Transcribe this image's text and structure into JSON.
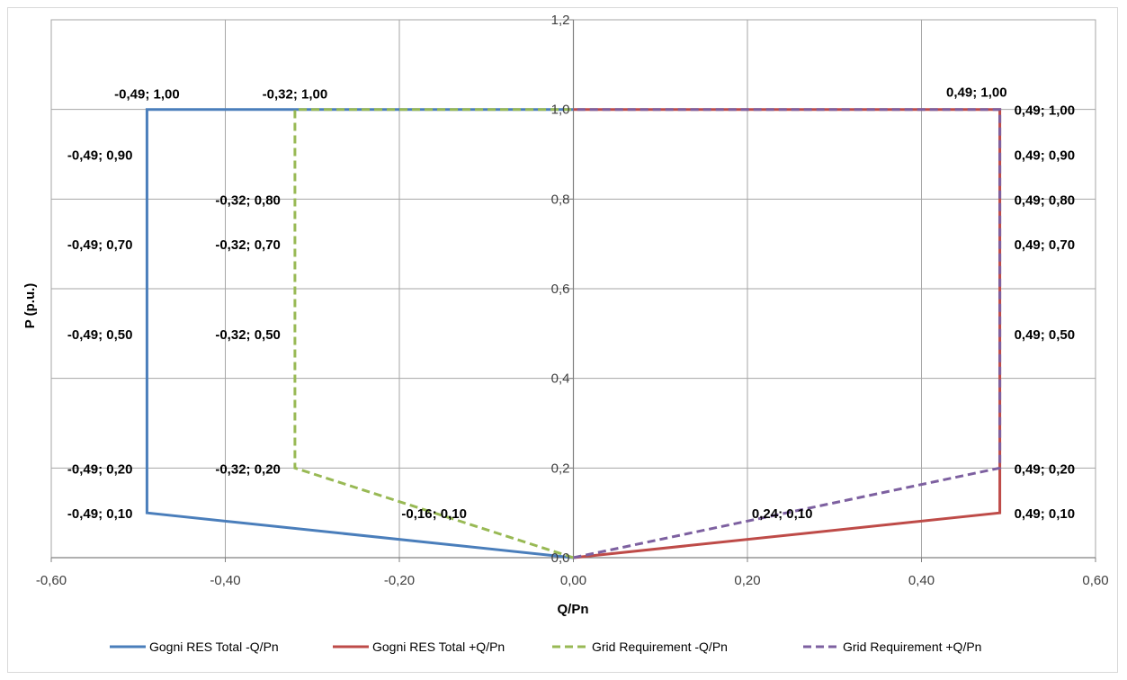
{
  "chart_data": {
    "type": "line",
    "xlabel": "Q/Pn",
    "ylabel": "P (p.u.)",
    "xlim": [
      -0.6,
      0.6
    ],
    "ylim": [
      0,
      1.2
    ],
    "x_ticks": [
      "-0,60",
      "-0,40",
      "-0,20",
      "0,00",
      "0,20",
      "0,40",
      "0,60"
    ],
    "y_ticks": [
      "0,0",
      "0,2",
      "0,4",
      "0,6",
      "0,8",
      "1,0",
      "1,2"
    ],
    "grid": true,
    "legend_position": "bottom",
    "series": [
      {
        "name": "Gogni RES Total -Q/Pn",
        "color": "#4a7ebb",
        "dashed": false,
        "points": [
          [
            0.0,
            0.0
          ],
          [
            -0.49,
            0.1
          ],
          [
            -0.49,
            0.2
          ],
          [
            -0.49,
            0.5
          ],
          [
            -0.49,
            0.7
          ],
          [
            -0.49,
            0.9
          ],
          [
            -0.49,
            1.0
          ],
          [
            0.0,
            1.0
          ]
        ]
      },
      {
        "name": "Gogni RES Total +Q/Pn",
        "color": "#be4b48",
        "dashed": false,
        "points": [
          [
            0.0,
            0.0
          ],
          [
            0.49,
            0.1
          ],
          [
            0.49,
            0.2
          ],
          [
            0.49,
            0.5
          ],
          [
            0.49,
            0.7
          ],
          [
            0.49,
            0.8
          ],
          [
            0.49,
            0.9
          ],
          [
            0.49,
            1.0
          ],
          [
            0.0,
            1.0
          ]
        ]
      },
      {
        "name": "Grid Requirement -Q/Pn",
        "color": "#98b954",
        "dashed": true,
        "points": [
          [
            0.0,
            0.0
          ],
          [
            -0.32,
            0.2
          ],
          [
            -0.32,
            0.5
          ],
          [
            -0.32,
            0.7
          ],
          [
            -0.32,
            0.8
          ],
          [
            -0.32,
            1.0
          ],
          [
            0.0,
            1.0
          ]
        ]
      },
      {
        "name": "Grid Requirement +Q/Pn",
        "color": "#7d60a0",
        "dashed": true,
        "points": [
          [
            0.0,
            0.0
          ],
          [
            0.49,
            0.2
          ],
          [
            0.49,
            1.0
          ],
          [
            0.0,
            1.0
          ]
        ]
      }
    ],
    "annotations": [
      {
        "text": "-0,49; 1,00",
        "x": -0.49,
        "y": 1.0,
        "pos": "above"
      },
      {
        "text": "-0,49; 0,90",
        "x": -0.49,
        "y": 0.9,
        "pos": "left"
      },
      {
        "text": "-0,49; 0,70",
        "x": -0.49,
        "y": 0.7,
        "pos": "left"
      },
      {
        "text": "-0,49; 0,50",
        "x": -0.49,
        "y": 0.5,
        "pos": "left"
      },
      {
        "text": "-0,49; 0,20",
        "x": -0.49,
        "y": 0.2,
        "pos": "left"
      },
      {
        "text": "-0,49; 0,10",
        "x": -0.49,
        "y": 0.1,
        "pos": "left"
      },
      {
        "text": "-0,32; 1,00",
        "x": -0.32,
        "y": 1.0,
        "pos": "above"
      },
      {
        "text": "-0,32; 0,80",
        "x": -0.32,
        "y": 0.8,
        "pos": "left"
      },
      {
        "text": "-0,32; 0,70",
        "x": -0.32,
        "y": 0.7,
        "pos": "left"
      },
      {
        "text": "-0,32; 0,50",
        "x": -0.32,
        "y": 0.5,
        "pos": "left"
      },
      {
        "text": "-0,32; 0,20",
        "x": -0.32,
        "y": 0.2,
        "pos": "left"
      },
      {
        "text": "-0,16; 0,10",
        "x": -0.16,
        "y": 0.1,
        "pos": "center"
      },
      {
        "text": "0,24; 0,10",
        "x": 0.24,
        "y": 0.1,
        "pos": "center"
      },
      {
        "text": "0,49; 1,00",
        "x": 0.49,
        "y": 1.0,
        "pos": "above-left"
      },
      {
        "text": "0,49; 1,00",
        "x": 0.49,
        "y": 1.0,
        "pos": "right"
      },
      {
        "text": "0,49; 0,90",
        "x": 0.49,
        "y": 0.9,
        "pos": "right"
      },
      {
        "text": "0,49; 0,80",
        "x": 0.49,
        "y": 0.8,
        "pos": "right"
      },
      {
        "text": "0,49; 0,70",
        "x": 0.49,
        "y": 0.7,
        "pos": "right"
      },
      {
        "text": "0,49; 0,50",
        "x": 0.49,
        "y": 0.5,
        "pos": "right"
      },
      {
        "text": "0,49; 0,20",
        "x": 0.49,
        "y": 0.2,
        "pos": "right"
      },
      {
        "text": "0,49; 0,10",
        "x": 0.49,
        "y": 0.1,
        "pos": "right"
      }
    ]
  }
}
